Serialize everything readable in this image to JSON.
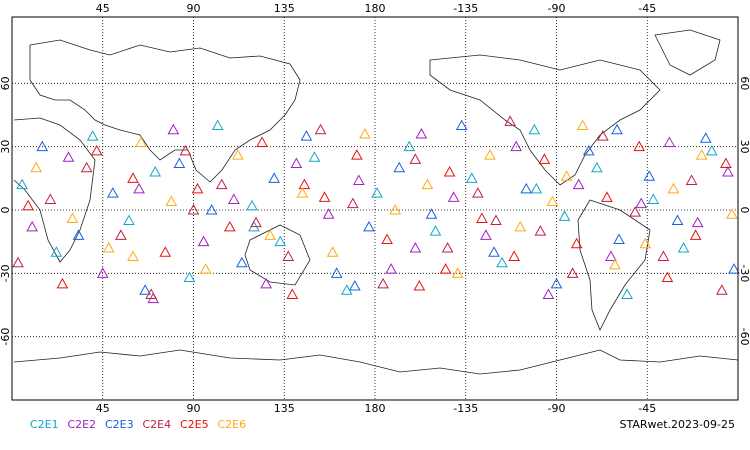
{
  "chart_data": {
    "type": "scatter",
    "xlim": [
      0,
      360
    ],
    "ylim": [
      -90,
      90
    ],
    "xticks": [
      45,
      90,
      135,
      180,
      {
        "value": 225,
        "label": "-135"
      },
      {
        "value": 270,
        "label": "-90"
      },
      {
        "value": 315,
        "label": "-45"
      }
    ],
    "yticks": [
      -60,
      -30,
      0,
      30,
      60
    ],
    "grid": true,
    "footer": "STARwet.2023-09-25",
    "series": [
      {
        "name": "C2E1",
        "color": "#10a8c8",
        "x": [
          5,
          22,
          40,
          58,
          71,
          88,
          102,
          119,
          133,
          150,
          166,
          181,
          197,
          210,
          228,
          243,
          259,
          274,
          290,
          305,
          318,
          333,
          347,
          120,
          260
        ],
        "values": [
          12,
          -20,
          35,
          -5,
          18,
          -32,
          40,
          2,
          -15,
          25,
          -38,
          8,
          30,
          -10,
          15,
          -25,
          38,
          -3,
          20,
          -40,
          5,
          -18,
          28,
          -8,
          10
        ]
      },
      {
        "name": "C2E2",
        "color": "#a020c0",
        "x": [
          10,
          28,
          45,
          63,
          80,
          95,
          110,
          126,
          141,
          157,
          172,
          188,
          203,
          219,
          235,
          250,
          266,
          281,
          297,
          312,
          326,
          340,
          355,
          70,
          200
        ],
        "values": [
          -8,
          25,
          -30,
          10,
          38,
          -15,
          5,
          -35,
          22,
          -2,
          14,
          -28,
          36,
          6,
          -12,
          30,
          -40,
          12,
          -22,
          3,
          32,
          -6,
          18,
          -42,
          -18
        ]
      },
      {
        "name": "C2E3",
        "color": "#1860e0",
        "x": [
          15,
          33,
          50,
          66,
          83,
          99,
          114,
          130,
          146,
          161,
          177,
          192,
          208,
          223,
          239,
          255,
          270,
          286,
          301,
          316,
          330,
          344,
          358,
          170,
          300
        ],
        "values": [
          30,
          -12,
          8,
          -38,
          22,
          0,
          -25,
          15,
          35,
          -30,
          -8,
          20,
          -2,
          40,
          -20,
          10,
          -35,
          28,
          -14,
          16,
          -5,
          34,
          -28,
          -36,
          38
        ]
      },
      {
        "name": "C2E4",
        "color": "#c02040",
        "x": [
          3,
          19,
          37,
          54,
          69,
          86,
          104,
          121,
          137,
          153,
          169,
          184,
          200,
          216,
          231,
          247,
          262,
          278,
          293,
          309,
          323,
          337,
          352,
          90,
          240
        ],
        "values": [
          -25,
          5,
          20,
          -12,
          -40,
          28,
          12,
          -6,
          -22,
          38,
          3,
          -35,
          24,
          -18,
          8,
          42,
          -10,
          -30,
          35,
          -1,
          -22,
          14,
          -38,
          0,
          -5
        ]
      },
      {
        "name": "C2E5",
        "color": "#e81010",
        "x": [
          8,
          25,
          42,
          60,
          76,
          92,
          108,
          124,
          139,
          155,
          171,
          186,
          202,
          217,
          233,
          249,
          264,
          280,
          295,
          311,
          325,
          339,
          354,
          145,
          215
        ],
        "values": [
          2,
          -35,
          28,
          15,
          -20,
          10,
          -8,
          32,
          -40,
          6,
          26,
          -14,
          -36,
          18,
          -4,
          -22,
          24,
          -16,
          6,
          30,
          -32,
          -12,
          22,
          12,
          -28
        ]
      },
      {
        "name": "C2E6",
        "color": "#ffaa10",
        "x": [
          12,
          30,
          48,
          64,
          79,
          96,
          112,
          128,
          144,
          159,
          175,
          190,
          206,
          221,
          237,
          252,
          268,
          283,
          299,
          314,
          328,
          342,
          357,
          60,
          275
        ],
        "values": [
          20,
          -4,
          -18,
          32,
          4,
          -28,
          26,
          -12,
          8,
          -20,
          36,
          0,
          12,
          -30,
          26,
          -8,
          4,
          40,
          -26,
          -16,
          10,
          26,
          -2,
          -22,
          16
        ]
      }
    ]
  }
}
